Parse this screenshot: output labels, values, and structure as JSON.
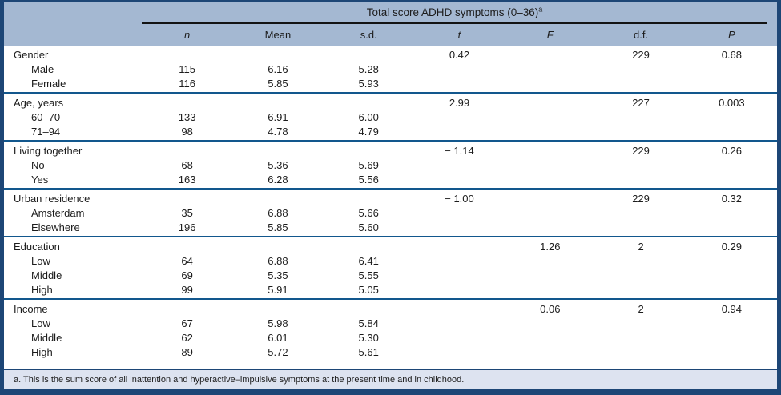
{
  "page": {
    "title": "Total score ADHD symptoms (0–36)",
    "title_note_mark": "a"
  },
  "columns": [
    "n",
    "Mean",
    "s.d.",
    "t",
    "F",
    "d.f.",
    "P"
  ],
  "groups": [
    {
      "label": "Gender",
      "stats": {
        "t": "0.42",
        "F": "",
        "df": "229",
        "P": "0.68"
      },
      "rows": [
        {
          "label": "Male",
          "n": "115",
          "mean": "6.16",
          "sd": "5.28"
        },
        {
          "label": "Female",
          "n": "116",
          "mean": "5.85",
          "sd": "5.93"
        }
      ]
    },
    {
      "label": "Age, years",
      "stats": {
        "t": "2.99",
        "F": "",
        "df": "227",
        "P": "0.003"
      },
      "rows": [
        {
          "label": "60–70",
          "n": "133",
          "mean": "6.91",
          "sd": "6.00"
        },
        {
          "label": "71–94",
          "n": "98",
          "mean": "4.78",
          "sd": "4.79"
        }
      ]
    },
    {
      "label": "Living together",
      "stats": {
        "t": "− 1.14",
        "F": "",
        "df": "229",
        "P": "0.26"
      },
      "rows": [
        {
          "label": "No",
          "n": "68",
          "mean": "5.36",
          "sd": "5.69"
        },
        {
          "label": "Yes",
          "n": "163",
          "mean": "6.28",
          "sd": "5.56"
        }
      ]
    },
    {
      "label": "Urban residence",
      "stats": {
        "t": "− 1.00",
        "F": "",
        "df": "229",
        "P": "0.32"
      },
      "rows": [
        {
          "label": "Amsterdam",
          "n": "35",
          "mean": "6.88",
          "sd": "5.66"
        },
        {
          "label": "Elsewhere",
          "n": "196",
          "mean": "5.85",
          "sd": "5.60"
        }
      ]
    },
    {
      "label": "Education",
      "stats": {
        "t": "",
        "F": "1.26",
        "df": "2",
        "P": "0.29"
      },
      "rows": [
        {
          "label": "Low",
          "n": "64",
          "mean": "6.88",
          "sd": "6.41"
        },
        {
          "label": "Middle",
          "n": "69",
          "mean": "5.35",
          "sd": "5.55"
        },
        {
          "label": "High",
          "n": "99",
          "mean": "5.91",
          "sd": "5.05"
        }
      ]
    },
    {
      "label": "Income",
      "stats": {
        "t": "",
        "F": "0.06",
        "df": "2",
        "P": "0.94"
      },
      "rows": [
        {
          "label": "Low",
          "n": "67",
          "mean": "5.98",
          "sd": "5.84"
        },
        {
          "label": "Middle",
          "n": "62",
          "mean": "6.01",
          "sd": "5.30"
        },
        {
          "label": "High",
          "n": "89",
          "mean": "5.72",
          "sd": "5.61"
        }
      ]
    }
  ],
  "footnote": "a. This is the sum score of all inattention and hyperactive–impulsive symptoms at the present time and in childhood.",
  "colors": {
    "header_bg": "#a4b8d2",
    "footnote_bg": "#dde3f0",
    "frame_navy": "#1d4676",
    "separator_blue": "#12578d",
    "rule_black": "#131313",
    "text": "#1c1c1c"
  }
}
